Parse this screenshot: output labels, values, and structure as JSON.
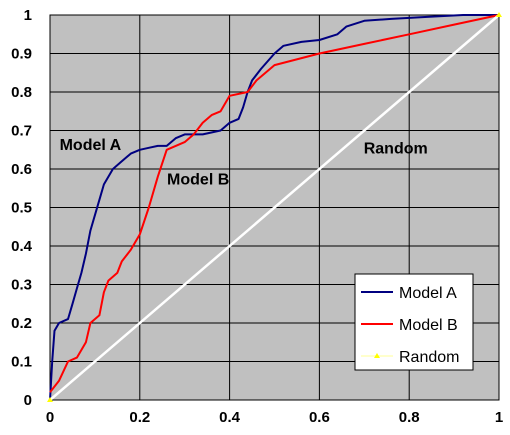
{
  "chart_data": {
    "type": "line",
    "title": "",
    "xlabel": "",
    "ylabel": "",
    "xlim": [
      0,
      1
    ],
    "ylim": [
      0,
      1
    ],
    "grid": true,
    "background": "#c0c0c0",
    "x_ticks": [
      "0",
      "0.2",
      "0.4",
      "0.6",
      "0.8",
      "1"
    ],
    "y_ticks": [
      "0",
      "0.1",
      "0.2",
      "0.3",
      "0.4",
      "0.5",
      "0.6",
      "0.7",
      "0.8",
      "0.9",
      "1"
    ],
    "legend": {
      "placement": "bottom-right",
      "entries": [
        "Model A",
        "Model B",
        "Random"
      ]
    },
    "annotations": [
      {
        "text": "Model A",
        "x": 0.09,
        "y": 0.65
      },
      {
        "text": "Model B",
        "x": 0.33,
        "y": 0.56
      },
      {
        "text": "Random",
        "x": 0.77,
        "y": 0.64
      }
    ],
    "series": [
      {
        "name": "Model A",
        "color": "#000080",
        "points": [
          [
            0,
            0
          ],
          [
            0.005,
            0.1
          ],
          [
            0.01,
            0.18
          ],
          [
            0.02,
            0.2
          ],
          [
            0.04,
            0.21
          ],
          [
            0.05,
            0.25
          ],
          [
            0.06,
            0.29
          ],
          [
            0.07,
            0.33
          ],
          [
            0.08,
            0.38
          ],
          [
            0.09,
            0.44
          ],
          [
            0.1,
            0.48
          ],
          [
            0.11,
            0.52
          ],
          [
            0.12,
            0.56
          ],
          [
            0.14,
            0.6
          ],
          [
            0.16,
            0.62
          ],
          [
            0.18,
            0.64
          ],
          [
            0.2,
            0.65
          ],
          [
            0.22,
            0.655
          ],
          [
            0.24,
            0.66
          ],
          [
            0.26,
            0.66
          ],
          [
            0.28,
            0.68
          ],
          [
            0.3,
            0.69
          ],
          [
            0.34,
            0.69
          ],
          [
            0.38,
            0.7
          ],
          [
            0.4,
            0.72
          ],
          [
            0.42,
            0.73
          ],
          [
            0.43,
            0.76
          ],
          [
            0.44,
            0.8
          ],
          [
            0.45,
            0.83
          ],
          [
            0.47,
            0.86
          ],
          [
            0.5,
            0.9
          ],
          [
            0.52,
            0.92
          ],
          [
            0.56,
            0.93
          ],
          [
            0.6,
            0.935
          ],
          [
            0.64,
            0.95
          ],
          [
            0.66,
            0.97
          ],
          [
            0.7,
            0.985
          ],
          [
            0.76,
            0.99
          ],
          [
            0.84,
            0.995
          ],
          [
            0.92,
            1.0
          ],
          [
            1,
            1
          ]
        ]
      },
      {
        "name": "Model B",
        "color": "#ff0000",
        "points": [
          [
            0,
            0.02
          ],
          [
            0.02,
            0.05
          ],
          [
            0.04,
            0.1
          ],
          [
            0.06,
            0.11
          ],
          [
            0.08,
            0.15
          ],
          [
            0.09,
            0.2
          ],
          [
            0.11,
            0.22
          ],
          [
            0.12,
            0.28
          ],
          [
            0.13,
            0.31
          ],
          [
            0.15,
            0.33
          ],
          [
            0.16,
            0.36
          ],
          [
            0.18,
            0.39
          ],
          [
            0.2,
            0.43
          ],
          [
            0.22,
            0.5
          ],
          [
            0.24,
            0.58
          ],
          [
            0.26,
            0.65
          ],
          [
            0.28,
            0.66
          ],
          [
            0.3,
            0.67
          ],
          [
            0.32,
            0.69
          ],
          [
            0.34,
            0.72
          ],
          [
            0.36,
            0.74
          ],
          [
            0.38,
            0.75
          ],
          [
            0.4,
            0.79
          ],
          [
            0.44,
            0.8
          ],
          [
            0.46,
            0.83
          ],
          [
            0.5,
            0.87
          ],
          [
            0.6,
            0.9
          ],
          [
            0.7,
            0.925
          ],
          [
            0.8,
            0.95
          ],
          [
            0.9,
            0.975
          ],
          [
            1,
            1
          ]
        ]
      },
      {
        "name": "Random",
        "color": "#ffffff",
        "points": [
          [
            0,
            0
          ],
          [
            1,
            1
          ]
        ]
      }
    ]
  }
}
